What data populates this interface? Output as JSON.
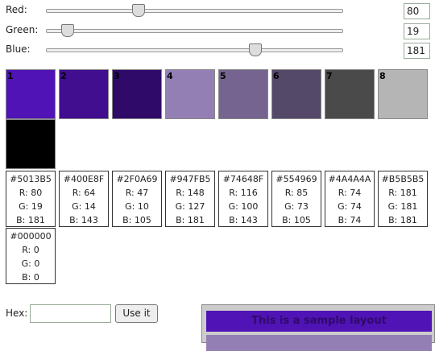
{
  "sliders": [
    {
      "label": "Red:",
      "value": 80
    },
    {
      "label": "Green:",
      "value": 19
    },
    {
      "label": "Blue:",
      "value": 181
    }
  ],
  "swatches": [
    {
      "number": "1",
      "hex": "#5013B5",
      "r": "R: 80",
      "g": "G: 19",
      "b": "B: 181"
    },
    {
      "number": "2",
      "hex": "#400E8F",
      "r": "R: 64",
      "g": "G: 14",
      "b": "B: 143"
    },
    {
      "number": "3",
      "hex": "#2F0A69",
      "r": "R: 47",
      "g": "G: 10",
      "b": "B: 105"
    },
    {
      "number": "4",
      "hex": "#947FB5",
      "r": "R: 148",
      "g": "G: 127",
      "b": "B: 181"
    },
    {
      "number": "5",
      "hex": "#74648F",
      "r": "R: 116",
      "g": "G: 100",
      "b": "B: 143"
    },
    {
      "number": "6",
      "hex": "#554969",
      "r": "R: 85",
      "g": "G: 73",
      "b": "B: 105"
    },
    {
      "number": "7",
      "hex": "#4A4A4A",
      "r": "R: 74",
      "g": "G: 74",
      "b": "B: 74"
    },
    {
      "number": "8",
      "hex": "#B5B5B5",
      "r": "R: 181",
      "g": "G: 181",
      "b": "B: 181"
    },
    {
      "hex": "#000000",
      "r": "R: 0",
      "g": "G: 0",
      "b": "B: 0"
    }
  ],
  "hex_form": {
    "label": "Hex:",
    "button": "Use it"
  },
  "sample": {
    "title": "This is a sample layout"
  }
}
